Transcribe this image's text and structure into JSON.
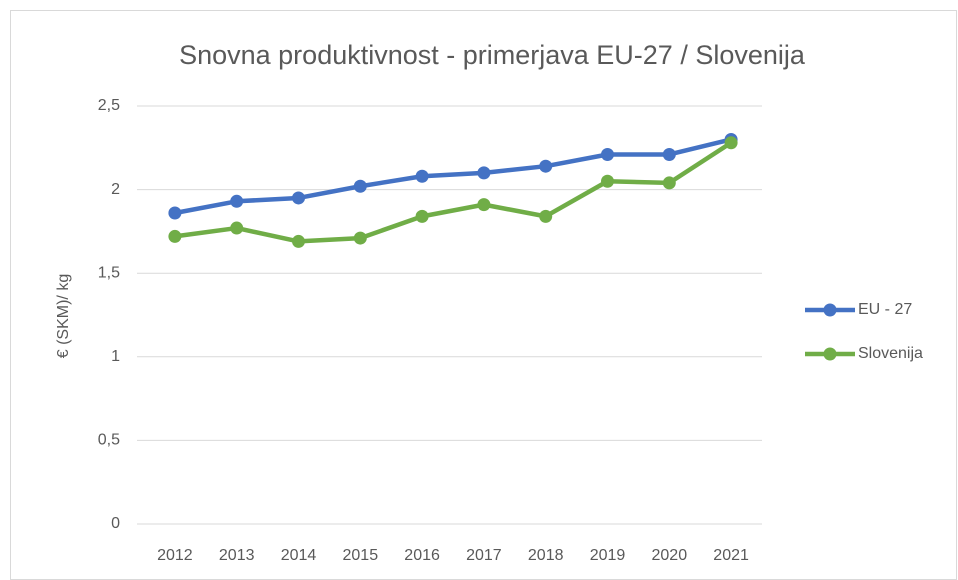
{
  "chart_data": {
    "type": "line",
    "title": "Snovna produktivnost - primerjava EU-27 / Slovenija",
    "y_label": "€  (SKM)/ kg",
    "categories": [
      "2012",
      "2013",
      "2014",
      "2015",
      "2016",
      "2017",
      "2018",
      "2019",
      "2020",
      "2021"
    ],
    "series": [
      {
        "name": "EU - 27",
        "color": "#4472c4",
        "values": [
          1.86,
          1.93,
          1.95,
          2.02,
          2.08,
          2.1,
          2.14,
          2.21,
          2.21,
          2.3
        ]
      },
      {
        "name": "Slovenija",
        "color": "#70ad47",
        "values": [
          1.72,
          1.77,
          1.69,
          1.71,
          1.84,
          1.91,
          1.84,
          2.05,
          2.04,
          2.28
        ]
      }
    ],
    "ylim": [
      0,
      2.5
    ],
    "yticks": [
      0,
      {
        "value": 0.5,
        "label": "0,5"
      },
      1,
      {
        "value": 1.5,
        "label": "1,5"
      },
      2,
      {
        "value": 2.5,
        "label": "2,5"
      }
    ],
    "grid": true,
    "legend": "right"
  }
}
